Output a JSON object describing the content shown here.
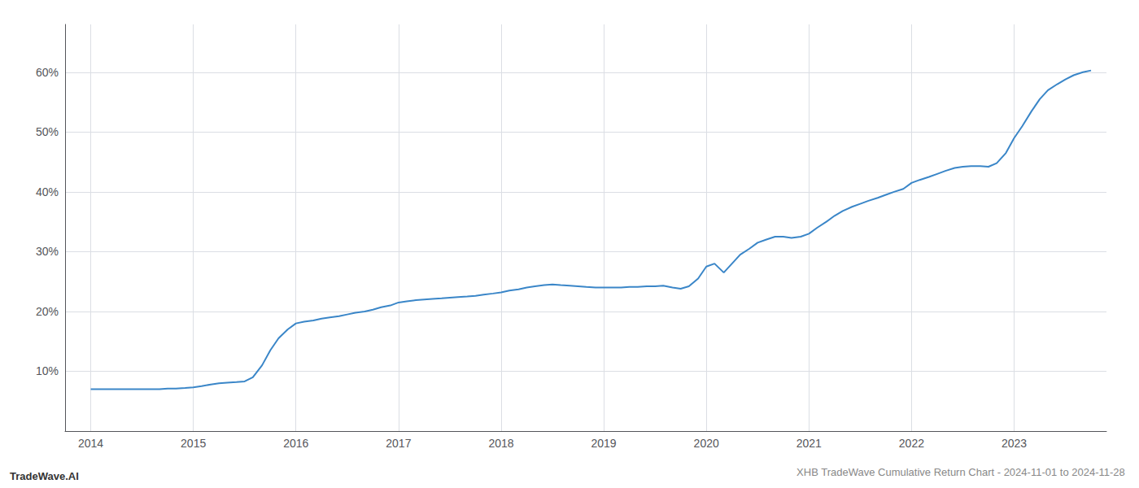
{
  "chart_data": {
    "type": "line",
    "title": "XHB TradeWave Cumulative Return Chart - 2024-11-01 to 2024-11-28",
    "annotations": [
      "TradeWave.AI"
    ],
    "x": [
      2014.0,
      2014.08,
      2014.17,
      2014.25,
      2014.33,
      2014.42,
      2014.5,
      2014.58,
      2014.67,
      2014.75,
      2014.83,
      2014.92,
      2015.0,
      2015.08,
      2015.17,
      2015.25,
      2015.33,
      2015.42,
      2015.5,
      2015.58,
      2015.67,
      2015.75,
      2015.83,
      2015.92,
      2016.0,
      2016.08,
      2016.17,
      2016.25,
      2016.33,
      2016.42,
      2016.5,
      2016.58,
      2016.67,
      2016.75,
      2016.83,
      2016.92,
      2017.0,
      2017.08,
      2017.17,
      2017.25,
      2017.33,
      2017.42,
      2017.5,
      2017.58,
      2017.67,
      2017.75,
      2017.83,
      2017.92,
      2018.0,
      2018.08,
      2018.17,
      2018.25,
      2018.33,
      2018.42,
      2018.5,
      2018.58,
      2018.67,
      2018.75,
      2018.83,
      2018.92,
      2019.0,
      2019.08,
      2019.17,
      2019.25,
      2019.33,
      2019.42,
      2019.5,
      2019.58,
      2019.67,
      2019.75,
      2019.83,
      2019.92,
      2020.0,
      2020.08,
      2020.17,
      2020.25,
      2020.33,
      2020.42,
      2020.5,
      2020.58,
      2020.67,
      2020.75,
      2020.83,
      2020.92,
      2021.0,
      2021.08,
      2021.17,
      2021.25,
      2021.33,
      2021.42,
      2021.5,
      2021.58,
      2021.67,
      2021.75,
      2021.83,
      2021.92,
      2022.0,
      2022.08,
      2022.17,
      2022.25,
      2022.33,
      2022.42,
      2022.5,
      2022.58,
      2022.67,
      2022.75,
      2022.83,
      2022.92,
      2023.0,
      2023.08,
      2023.17,
      2023.25,
      2023.33,
      2023.42,
      2023.5,
      2023.58,
      2023.67,
      2023.75
    ],
    "values": [
      7.0,
      7.0,
      7.0,
      7.0,
      7.0,
      7.0,
      7.0,
      7.0,
      7.0,
      7.1,
      7.1,
      7.2,
      7.3,
      7.5,
      7.8,
      8.0,
      8.1,
      8.2,
      8.3,
      9.0,
      11.0,
      13.5,
      15.5,
      17.0,
      18.0,
      18.3,
      18.5,
      18.8,
      19.0,
      19.2,
      19.5,
      19.8,
      20.0,
      20.3,
      20.7,
      21.0,
      21.5,
      21.7,
      21.9,
      22.0,
      22.1,
      22.2,
      22.3,
      22.4,
      22.5,
      22.6,
      22.8,
      23.0,
      23.2,
      23.5,
      23.7,
      24.0,
      24.2,
      24.4,
      24.5,
      24.4,
      24.3,
      24.2,
      24.1,
      24.0,
      24.0,
      24.0,
      24.0,
      24.1,
      24.1,
      24.2,
      24.2,
      24.3,
      24.0,
      23.8,
      24.2,
      25.5,
      27.5,
      28.0,
      26.5,
      28.0,
      29.5,
      30.5,
      31.5,
      32.0,
      32.5,
      32.5,
      32.3,
      32.5,
      33.0,
      34.0,
      35.0,
      36.0,
      36.8,
      37.5,
      38.0,
      38.5,
      39.0,
      39.5,
      40.0,
      40.5,
      41.5,
      42.0,
      42.5,
      43.0,
      43.5,
      44.0,
      44.2,
      44.3,
      44.3,
      44.2,
      44.8,
      46.5,
      49.0,
      51.0,
      53.5,
      55.5,
      57.0,
      58.0,
      58.8,
      59.5,
      60.0,
      60.3
    ],
    "color": "#3a86c8",
    "xlim": [
      2013.75,
      2023.9
    ],
    "xticks": [
      2014,
      2015,
      2016,
      2017,
      2018,
      2019,
      2020,
      2021,
      2022,
      2023
    ],
    "ylim": [
      0,
      68
    ],
    "yticks": [
      {
        "value": 10,
        "label": "10%"
      },
      {
        "value": 20,
        "label": "20%"
      },
      {
        "value": 30,
        "label": "30%"
      },
      {
        "value": 40,
        "label": "40%"
      },
      {
        "value": 50,
        "label": "50%"
      },
      {
        "value": 60,
        "label": "60%"
      }
    ],
    "grid": true
  }
}
